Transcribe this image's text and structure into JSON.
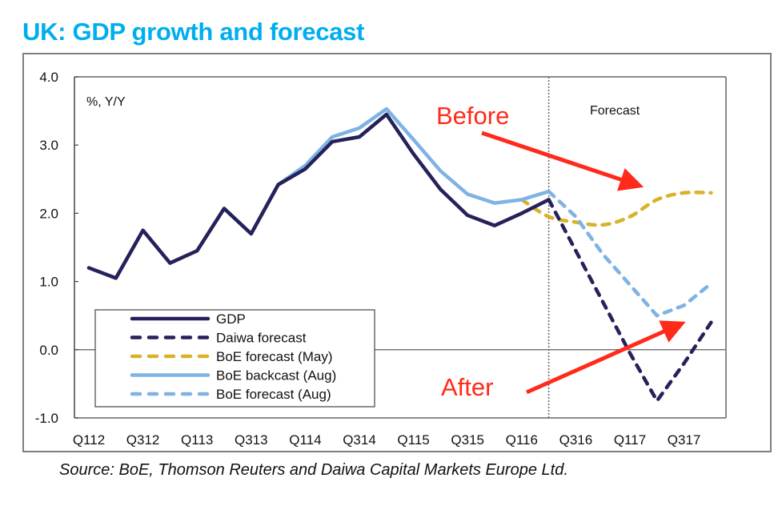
{
  "title": "UK: GDP growth and forecast",
  "source": "Source: BoE, Thomson Reuters and Daiwa Capital Markets Europe Ltd.",
  "chart_data": {
    "type": "line",
    "title": "UK: GDP growth and forecast",
    "ylabel": "%, Y/Y",
    "xlabel": "",
    "ylim": [
      -1.0,
      4.0
    ],
    "yticks": [
      4.0,
      3.0,
      2.0,
      1.0,
      0.0,
      -1.0
    ],
    "ytick_labels": [
      "4.0",
      "3.0",
      "2.0",
      "1.0",
      "0.0",
      "-1.0"
    ],
    "x": [
      "Q112",
      "Q212",
      "Q312",
      "Q412",
      "Q113",
      "Q213",
      "Q313",
      "Q413",
      "Q114",
      "Q214",
      "Q314",
      "Q414",
      "Q115",
      "Q215",
      "Q315",
      "Q415",
      "Q116",
      "Q216",
      "Q316",
      "Q416",
      "Q117",
      "Q217",
      "Q317",
      "Q417"
    ],
    "xtick_labels": [
      "Q112",
      "Q312",
      "Q113",
      "Q313",
      "Q114",
      "Q314",
      "Q115",
      "Q315",
      "Q116",
      "Q316",
      "Q117",
      "Q317"
    ],
    "forecast_divider_after": "Q216",
    "forecast_label": "Forecast",
    "grid": false,
    "legend": "bottom-left",
    "series": [
      {
        "name": "GDP",
        "color": "#25215a",
        "style": "solid",
        "values": [
          1.2,
          1.05,
          1.75,
          1.27,
          1.45,
          2.07,
          1.7,
          2.42,
          2.65,
          3.05,
          3.12,
          3.45,
          2.87,
          2.35,
          1.97,
          1.82,
          2.0,
          2.2,
          null,
          null,
          null,
          null,
          null,
          null
        ]
      },
      {
        "name": "Daiwa forecast",
        "color": "#25215a",
        "style": "dashed",
        "values": [
          null,
          null,
          null,
          null,
          null,
          null,
          null,
          null,
          null,
          null,
          null,
          null,
          null,
          null,
          null,
          null,
          null,
          2.2,
          1.45,
          0.7,
          -0.05,
          -0.75,
          -0.2,
          0.4
        ]
      },
      {
        "name": "BoE forecast (May)",
        "color": "#d9b22a",
        "style": "dashed",
        "values": [
          null,
          null,
          null,
          null,
          null,
          null,
          null,
          null,
          null,
          null,
          null,
          null,
          null,
          null,
          null,
          null,
          2.2,
          1.95,
          1.87,
          1.83,
          1.95,
          2.2,
          2.3,
          2.3
        ]
      },
      {
        "name": "BoE backcast (Aug)",
        "color": "#7eb3e3",
        "style": "solid",
        "values": [
          1.2,
          1.05,
          1.75,
          1.27,
          1.45,
          2.07,
          1.7,
          2.42,
          2.7,
          3.12,
          3.25,
          3.53,
          3.08,
          2.62,
          2.28,
          2.15,
          2.2,
          2.32,
          null,
          null,
          null,
          null,
          null,
          null
        ]
      },
      {
        "name": "BoE forecast (Aug)",
        "color": "#7eb3e3",
        "style": "dashed",
        "values": [
          null,
          null,
          null,
          null,
          null,
          null,
          null,
          null,
          null,
          null,
          null,
          null,
          null,
          null,
          null,
          null,
          null,
          2.32,
          1.95,
          1.4,
          0.95,
          0.5,
          0.65,
          0.97
        ]
      }
    ],
    "annotations": [
      {
        "text": "Before",
        "color": "#ff2a1a",
        "arrow_to": "BoE forecast (May)"
      },
      {
        "text": "After",
        "color": "#ff2a1a",
        "arrow_to": "BoE forecast (Aug)"
      }
    ]
  }
}
